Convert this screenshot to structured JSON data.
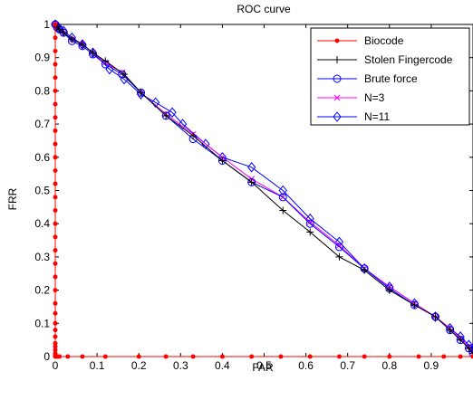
{
  "chart_data": {
    "type": "line",
    "title": "ROC curve",
    "xlabel": "FAR",
    "ylabel": "FRR",
    "xlim": [
      0,
      1
    ],
    "ylim": [
      0,
      1
    ],
    "xticks": [
      0,
      0.1,
      0.2,
      0.3,
      0.4,
      0.5,
      0.6,
      0.7,
      0.8,
      0.9
    ],
    "yticks": [
      0,
      0.1,
      0.2,
      0.3,
      0.4,
      0.5,
      0.6,
      0.7,
      0.8,
      0.9,
      1
    ],
    "xtick_labels": [
      "0",
      "0.1",
      "0.2",
      "0.3",
      "0.4",
      "0.5",
      "0.6",
      "0.7",
      "0.8",
      "0.9"
    ],
    "ytick_labels": [
      "0",
      "0.1",
      "0.2",
      "0.3",
      "0.4",
      "0.5",
      "0.6",
      "0.7",
      "0.8",
      "0.9",
      "1"
    ],
    "grid": false,
    "legend_position": "top-right",
    "series": [
      {
        "name": "Biocode",
        "color": "#ff0000",
        "marker": "dot",
        "points": [
          [
            0,
            1
          ],
          [
            0,
            0.96
          ],
          [
            0,
            0.92
          ],
          [
            0,
            0.88
          ],
          [
            0,
            0.84
          ],
          [
            0,
            0.8
          ],
          [
            0,
            0.76
          ],
          [
            0,
            0.72
          ],
          [
            0,
            0.68
          ],
          [
            0,
            0.64
          ],
          [
            0,
            0.6
          ],
          [
            0,
            0.56
          ],
          [
            0,
            0.52
          ],
          [
            0,
            0.48
          ],
          [
            0,
            0.44
          ],
          [
            0,
            0.4
          ],
          [
            0,
            0.36
          ],
          [
            0,
            0.32
          ],
          [
            0,
            0.28
          ],
          [
            0,
            0.24
          ],
          [
            0,
            0.2
          ],
          [
            0,
            0.16
          ],
          [
            0,
            0.13
          ],
          [
            0,
            0.1
          ],
          [
            0,
            0.08
          ],
          [
            0,
            0.06
          ],
          [
            0,
            0.04
          ],
          [
            0,
            0.03
          ],
          [
            0,
            0.02
          ],
          [
            0,
            0.01
          ],
          [
            0,
            0.005
          ],
          [
            0,
            0
          ],
          [
            0.005,
            0
          ],
          [
            0.01,
            0
          ],
          [
            0.03,
            0
          ],
          [
            0.065,
            0
          ],
          [
            0.12,
            0
          ],
          [
            0.2,
            0
          ],
          [
            0.265,
            0
          ],
          [
            0.33,
            0
          ],
          [
            0.4,
            0
          ],
          [
            0.47,
            0
          ],
          [
            0.54,
            0
          ],
          [
            0.61,
            0
          ],
          [
            0.68,
            0
          ],
          [
            0.74,
            0
          ],
          [
            0.8,
            0
          ],
          [
            0.87,
            0
          ],
          [
            0.93,
            0
          ],
          [
            0.97,
            0
          ],
          [
            1,
            0
          ]
        ]
      },
      {
        "name": "Stolen Fingercode",
        "color": "#000000",
        "marker": "plus",
        "points": [
          [
            0,
            1
          ],
          [
            0.005,
            0.993
          ],
          [
            0.01,
            0.985
          ],
          [
            0.02,
            0.975
          ],
          [
            0.04,
            0.955
          ],
          [
            0.065,
            0.94
          ],
          [
            0.09,
            0.915
          ],
          [
            0.12,
            0.89
          ],
          [
            0.165,
            0.85
          ],
          [
            0.205,
            0.795
          ],
          [
            0.265,
            0.725
          ],
          [
            0.33,
            0.665
          ],
          [
            0.4,
            0.59
          ],
          [
            0.47,
            0.525
          ],
          [
            0.545,
            0.44
          ],
          [
            0.61,
            0.375
          ],
          [
            0.68,
            0.3
          ],
          [
            0.74,
            0.26
          ],
          [
            0.8,
            0.2
          ],
          [
            0.86,
            0.155
          ],
          [
            0.91,
            0.12
          ],
          [
            0.945,
            0.08
          ],
          [
            0.97,
            0.05
          ],
          [
            0.99,
            0.025
          ],
          [
            1,
            0.01
          ]
        ]
      },
      {
        "name": "Brute force",
        "color": "#0000ff",
        "marker": "circle",
        "points": [
          [
            0,
            1
          ],
          [
            0.005,
            0.99
          ],
          [
            0.01,
            0.985
          ],
          [
            0.02,
            0.975
          ],
          [
            0.04,
            0.95
          ],
          [
            0.065,
            0.935
          ],
          [
            0.09,
            0.91
          ],
          [
            0.12,
            0.88
          ],
          [
            0.16,
            0.85
          ],
          [
            0.205,
            0.795
          ],
          [
            0.265,
            0.725
          ],
          [
            0.33,
            0.655
          ],
          [
            0.4,
            0.59
          ],
          [
            0.47,
            0.525
          ],
          [
            0.545,
            0.48
          ],
          [
            0.61,
            0.4
          ],
          [
            0.68,
            0.33
          ],
          [
            0.74,
            0.265
          ],
          [
            0.8,
            0.205
          ],
          [
            0.86,
            0.155
          ],
          [
            0.91,
            0.12
          ],
          [
            0.945,
            0.08
          ],
          [
            0.97,
            0.05
          ],
          [
            0.99,
            0.025
          ],
          [
            1,
            0.01
          ]
        ]
      },
      {
        "name": "N=3",
        "color": "#ff00ff",
        "marker": "cross",
        "points": [
          [
            0,
            1
          ],
          [
            0.005,
            0.99
          ],
          [
            0.01,
            0.985
          ],
          [
            0.02,
            0.975
          ],
          [
            0.04,
            0.955
          ],
          [
            0.065,
            0.94
          ],
          [
            0.09,
            0.915
          ],
          [
            0.12,
            0.885
          ],
          [
            0.16,
            0.855
          ],
          [
            0.205,
            0.795
          ],
          [
            0.265,
            0.73
          ],
          [
            0.33,
            0.67
          ],
          [
            0.4,
            0.6
          ],
          [
            0.47,
            0.535
          ],
          [
            0.545,
            0.48
          ],
          [
            0.61,
            0.405
          ],
          [
            0.68,
            0.335
          ],
          [
            0.74,
            0.265
          ],
          [
            0.8,
            0.21
          ],
          [
            0.86,
            0.16
          ],
          [
            0.91,
            0.12
          ],
          [
            0.945,
            0.085
          ],
          [
            0.97,
            0.055
          ],
          [
            0.99,
            0.03
          ],
          [
            1,
            0.015
          ]
        ]
      },
      {
        "name": "N=11",
        "color": "#0000ff",
        "marker": "diamond",
        "points": [
          [
            0,
            1
          ],
          [
            0.005,
            0.993
          ],
          [
            0.01,
            0.988
          ],
          [
            0.02,
            0.98
          ],
          [
            0.04,
            0.96
          ],
          [
            0.065,
            0.94
          ],
          [
            0.09,
            0.915
          ],
          [
            0.13,
            0.865
          ],
          [
            0.165,
            0.835
          ],
          [
            0.205,
            0.79
          ],
          [
            0.24,
            0.765
          ],
          [
            0.28,
            0.735
          ],
          [
            0.305,
            0.7
          ],
          [
            0.36,
            0.64
          ],
          [
            0.4,
            0.6
          ],
          [
            0.47,
            0.57
          ],
          [
            0.545,
            0.5
          ],
          [
            0.61,
            0.415
          ],
          [
            0.68,
            0.345
          ],
          [
            0.74,
            0.265
          ],
          [
            0.8,
            0.21
          ],
          [
            0.86,
            0.16
          ],
          [
            0.91,
            0.12
          ],
          [
            0.945,
            0.085
          ],
          [
            0.97,
            0.06
          ],
          [
            0.99,
            0.035
          ],
          [
            1,
            0.02
          ]
        ]
      }
    ]
  }
}
